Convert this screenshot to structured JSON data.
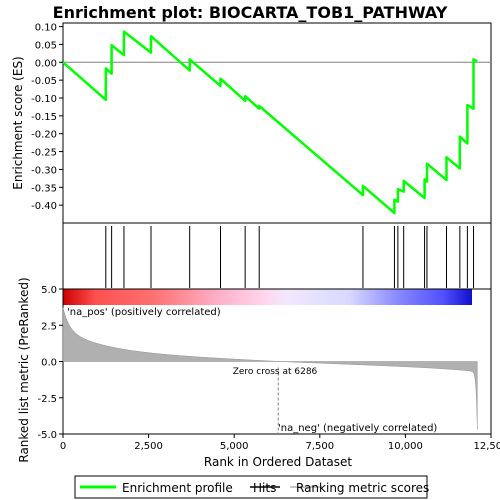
{
  "chart_data": {
    "type": "line",
    "title": "Enrichment plot: BIOCARTA_TOB1_PATHWAY",
    "xlabel": "Rank in Ordered Dataset",
    "ylabel_top": "Enrichment score (ES)",
    "ylabel_bottom": "Ranked list metric (PreRanked)",
    "x_range": [
      0,
      12500
    ],
    "x_ticks": [
      0,
      2500,
      5000,
      7500,
      10000,
      12500
    ],
    "x_tick_labels": [
      "0",
      "2,500",
      "5,000",
      "7,500",
      "10,000",
      "12,500"
    ],
    "es_ylim": [
      -0.45,
      0.11
    ],
    "es_ticks": [
      0.1,
      0.05,
      0.0,
      -0.05,
      -0.1,
      -0.15,
      -0.2,
      -0.25,
      -0.3,
      -0.35,
      -0.4
    ],
    "es_tick_labels": [
      "0.10",
      "0.05",
      "0.00",
      "-0.05",
      "-0.10",
      "-0.15",
      "-0.20",
      "-0.25",
      "-0.30",
      "-0.35",
      "-0.40"
    ],
    "metric_ylim": [
      -5.0,
      5.0
    ],
    "metric_ticks": [
      5.0,
      2.5,
      0.0,
      -2.5,
      -5.0
    ],
    "metric_tick_labels": [
      "5.0",
      "2.5",
      "0.0",
      "-2.5",
      "-5.0"
    ],
    "total_ranks": 12100,
    "hits": [
      1250,
      1420,
      1780,
      2570,
      3700,
      4600,
      5320,
      5730,
      8760,
      9680,
      9780,
      9950,
      10560,
      10630,
      11200,
      11590,
      11810,
      11990
    ],
    "es_profile": {
      "x": [
        0,
        1250,
        1250,
        1420,
        1420,
        1780,
        1780,
        2570,
        2570,
        3700,
        3700,
        4600,
        4600,
        5320,
        5320,
        5730,
        5730,
        8760,
        8760,
        9680,
        9680,
        9780,
        9780,
        9950,
        9950,
        10560,
        10560,
        10630,
        10630,
        11200,
        11200,
        11590,
        11590,
        11810,
        11810,
        11990,
        11990,
        12100
      ],
      "y": [
        0.0,
        -0.105,
        -0.017,
        -0.032,
        0.048,
        0.02,
        0.086,
        0.027,
        0.073,
        -0.023,
        0.008,
        -0.066,
        -0.046,
        -0.108,
        -0.095,
        -0.13,
        -0.122,
        -0.372,
        -0.346,
        -0.422,
        -0.385,
        -0.39,
        -0.355,
        -0.362,
        -0.332,
        -0.38,
        -0.328,
        -0.334,
        -0.284,
        -0.33,
        -0.266,
        -0.297,
        -0.208,
        -0.227,
        -0.12,
        -0.13,
        0.008,
        0.003
      ]
    },
    "zero_cross_label": "Zero cross at 6286",
    "zero_cross": 6286,
    "pos_label": "'na_pos' (positively correlated)",
    "neg_label": "'na_neg' (negatively correlated)",
    "legend": {
      "profile": "Enrichment profile",
      "hits": "Hits",
      "metric": "Ranking metric scores"
    },
    "colors": {
      "profile": "#00ff00",
      "hits": "#000000",
      "metric_fill": "#b0b0b0",
      "pos_text": "#cc0000",
      "neg_text": "#0000cc",
      "zero_cross_line": "#808080"
    }
  }
}
